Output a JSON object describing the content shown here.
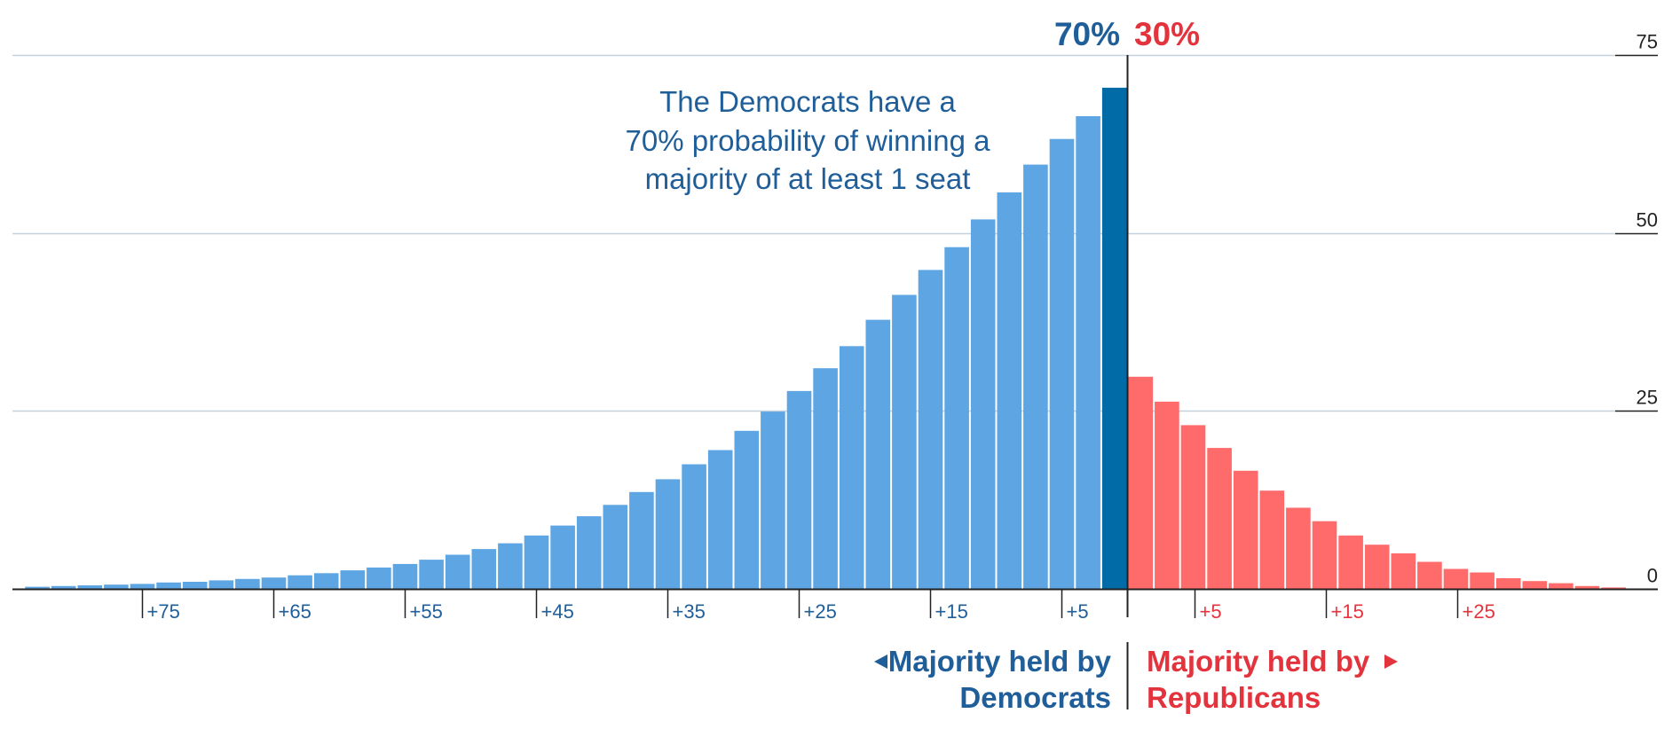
{
  "chart_data": {
    "type": "bar",
    "ylim": [
      0,
      75
    ],
    "y_ticks": [
      "75",
      "50",
      "25",
      "0"
    ],
    "y_tick_values": [
      75,
      50,
      25,
      0
    ],
    "grid": true,
    "headline": {
      "dem_pct": "70%",
      "rep_pct": "30%"
    },
    "annotation": [
      "The Democrats have a",
      "70% probability of winning a",
      "majority of at least 1 seat"
    ],
    "x_ticks": {
      "democrats": [
        "+75",
        "+65",
        "+55",
        "+45",
        "+35",
        "+25",
        "+15",
        "+5"
      ],
      "republicans": [
        "+5",
        "+15",
        "+25"
      ]
    },
    "side_labels": {
      "democrats": {
        "arrow": "◂",
        "line1": "Majority held by",
        "line2": "Democrats"
      },
      "republicans": {
        "arrow": "▸",
        "line1": "Majority held by",
        "line2": "Republicans"
      }
    },
    "series": [
      {
        "values": [
          0.3,
          0.4,
          0.5,
          0.6,
          0.7,
          0.9,
          1.0,
          1.2,
          1.4,
          1.6,
          1.9,
          2.2,
          2.6,
          3.0,
          3.5,
          4.1,
          4.8,
          5.6,
          6.4,
          7.5,
          8.9,
          10.2,
          11.8,
          13.6,
          15.4,
          17.5,
          19.5,
          22.2,
          24.9,
          27.8,
          31.0,
          34.1,
          37.8,
          41.3,
          44.8,
          48.0,
          51.9,
          55.7,
          59.6,
          63.2,
          66.4,
          70.4
        ]
      },
      {
        "values": [
          29.8,
          26.3,
          23.0,
          19.8,
          16.6,
          13.8,
          11.4,
          9.5,
          7.5,
          6.2,
          5.0,
          3.8,
          2.8,
          2.3,
          1.5,
          1.1,
          0.8,
          0.4,
          0.2
        ]
      }
    ],
    "colors": {
      "dem_bar": "#5ea5e3",
      "dem_highlight": "#006ba6",
      "dem_text": "#1f5e99",
      "rep_bar": "#ff6a6a",
      "rep_text": "#e3343e",
      "grid": "#c5d1dc",
      "axis": "#222222"
    }
  }
}
